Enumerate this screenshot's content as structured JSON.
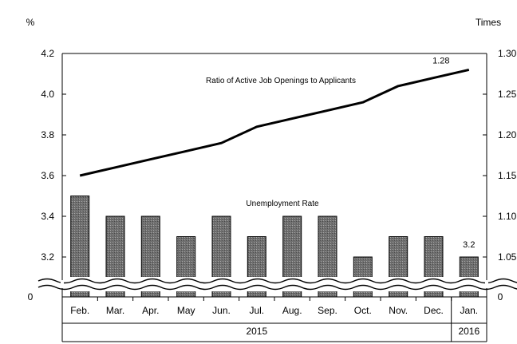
{
  "chart_data": {
    "type": "bar+line",
    "categories": [
      "Feb.",
      "Mar.",
      "Apr.",
      "May",
      "Jun.",
      "Jul.",
      "Aug.",
      "Sep.",
      "Oct.",
      "Nov.",
      "Dec.",
      "Jan."
    ],
    "year_groups": [
      {
        "label": "2015",
        "from": 0,
        "to": 10
      },
      {
        "label": "2016",
        "from": 11,
        "to": 11
      }
    ],
    "left_axis": {
      "unit": "%",
      "ylim": [
        3.0,
        4.2
      ],
      "ticks": [
        "4.2",
        "4.0",
        "3.8",
        "3.6",
        "3.4",
        "3.2"
      ],
      "tick_values": [
        4.2,
        4.0,
        3.8,
        3.6,
        3.4,
        3.2
      ],
      "zero_label": "0",
      "axis_break": true
    },
    "right_axis": {
      "unit": "Times",
      "ylim": [
        1.0,
        1.3
      ],
      "ticks": [
        "1.30",
        "1.25",
        "1.20",
        "1.15",
        "1.10",
        "1.05"
      ],
      "tick_values": [
        1.3,
        1.25,
        1.2,
        1.15,
        1.1,
        1.05
      ],
      "zero_label": "0",
      "axis_break": true
    },
    "series": [
      {
        "name": "Unemployment Rate",
        "type": "bar",
        "axis": "left",
        "values": [
          3.5,
          3.4,
          3.4,
          3.3,
          3.4,
          3.3,
          3.4,
          3.4,
          3.2,
          3.3,
          3.3,
          3.2
        ],
        "color": "#7f7f7f"
      },
      {
        "name": "Ratio of Active Job Openings to Applicants",
        "type": "line",
        "axis": "right",
        "values": [
          1.15,
          1.16,
          1.17,
          1.18,
          1.19,
          1.21,
          1.22,
          1.23,
          1.24,
          1.26,
          1.27,
          1.28
        ],
        "color": "#000000"
      }
    ],
    "data_labels": [
      {
        "series": 0,
        "index": 11,
        "text": "3.2"
      },
      {
        "series": 1,
        "index": 11,
        "text": "1.28"
      }
    ],
    "grid": false
  }
}
